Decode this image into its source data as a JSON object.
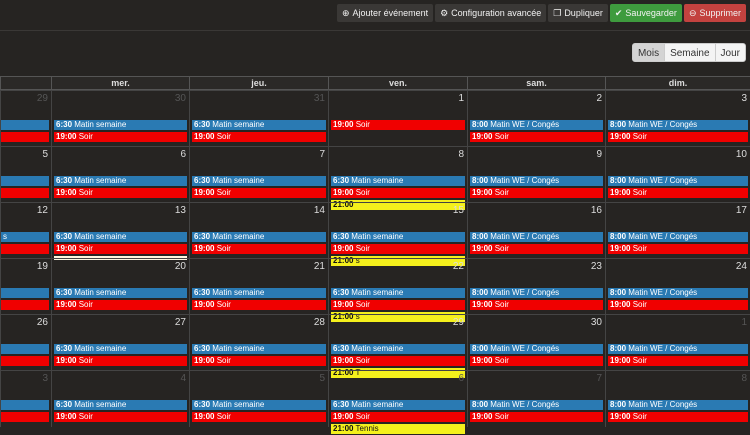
{
  "toolbar": {
    "add": "Ajouter événement",
    "config": "Configuration avancée",
    "duplicate": "Dupliquer",
    "save": "Sauvegarder",
    "delete": "Supprimer"
  },
  "views": [
    "Mois",
    "Semaine",
    "Jour"
  ],
  "headers": [
    "",
    "mer.",
    "jeu.",
    "ven.",
    "sam.",
    "dim."
  ],
  "weeks": [
    {
      "days": [
        {
          "num": "29",
          "dim": true,
          "events": [
            {
              "color": "blue",
              "time": "",
              "text": ""
            },
            {
              "color": "red",
              "time": "",
              "text": ""
            }
          ]
        },
        {
          "num": "30",
          "dim": true,
          "events": [
            {
              "color": "blue",
              "time": "6:30",
              "text": "Matin semaine"
            },
            {
              "color": "red",
              "time": "19:00",
              "text": "Soir"
            }
          ]
        },
        {
          "num": "31",
          "dim": true,
          "events": [
            {
              "color": "blue",
              "time": "6:30",
              "text": "Matin semaine"
            },
            {
              "color": "red",
              "time": "19:00",
              "text": "Soir"
            }
          ]
        },
        {
          "num": "1",
          "dim": false,
          "events": [
            {
              "color": "red",
              "time": "19:00",
              "text": "Soir"
            }
          ]
        },
        {
          "num": "2",
          "dim": false,
          "events": [
            {
              "color": "blue",
              "time": "8:00",
              "text": "Matin WE / Congés"
            },
            {
              "color": "red",
              "time": "19:00",
              "text": "Soir"
            }
          ]
        },
        {
          "num": "3",
          "dim": false,
          "events": [
            {
              "color": "blue",
              "time": "8:00",
              "text": "Matin WE / Congés"
            },
            {
              "color": "red",
              "time": "19:00",
              "text": "Soir"
            }
          ]
        }
      ]
    },
    {
      "days": [
        {
          "num": "5",
          "dim": false,
          "events": [
            {
              "color": "blue",
              "time": "",
              "text": ""
            },
            {
              "color": "red",
              "time": "",
              "text": ""
            }
          ]
        },
        {
          "num": "6",
          "dim": false,
          "events": [
            {
              "color": "blue",
              "time": "6:30",
              "text": "Matin semaine"
            },
            {
              "color": "red",
              "time": "19:00",
              "text": "Soir"
            }
          ]
        },
        {
          "num": "7",
          "dim": false,
          "events": [
            {
              "color": "blue",
              "time": "6:30",
              "text": "Matin semaine"
            },
            {
              "color": "red",
              "time": "19:00",
              "text": "Soir"
            }
          ]
        },
        {
          "num": "8",
          "dim": false,
          "events": [
            {
              "color": "blue",
              "time": "6:30",
              "text": "Matin semaine"
            },
            {
              "color": "red",
              "time": "19:00",
              "text": "Soir"
            },
            {
              "color": "yellow",
              "time": "21:00",
              "text": ""
            }
          ]
        },
        {
          "num": "9",
          "dim": false,
          "events": [
            {
              "color": "blue",
              "time": "8:00",
              "text": "Matin WE / Congés"
            },
            {
              "color": "red",
              "time": "19:00",
              "text": "Soir"
            }
          ]
        },
        {
          "num": "10",
          "dim": false,
          "events": [
            {
              "color": "blue",
              "time": "8:00",
              "text": "Matin WE / Congés"
            },
            {
              "color": "red",
              "time": "19:00",
              "text": "Soir"
            }
          ]
        }
      ]
    },
    {
      "days": [
        {
          "num": "12",
          "dim": false,
          "events": [
            {
              "color": "blue",
              "time": "",
              "text": "s"
            },
            {
              "color": "red",
              "time": "",
              "text": ""
            }
          ]
        },
        {
          "num": "13",
          "dim": false,
          "events": [
            {
              "color": "blue",
              "time": "6:30",
              "text": "Matin semaine"
            },
            {
              "color": "red",
              "time": "19:00",
              "text": "Soir"
            },
            {
              "color": "cream",
              "time": "",
              "text": ""
            }
          ]
        },
        {
          "num": "14",
          "dim": false,
          "events": [
            {
              "color": "blue",
              "time": "6:30",
              "text": "Matin semaine"
            },
            {
              "color": "red",
              "time": "19:00",
              "text": "Soir"
            }
          ]
        },
        {
          "num": "15",
          "dim": false,
          "events": [
            {
              "color": "blue",
              "time": "6:30",
              "text": "Matin semaine"
            },
            {
              "color": "red",
              "time": "19:00",
              "text": "Soir"
            },
            {
              "color": "yellow",
              "time": "21:00",
              "text": "s"
            }
          ]
        },
        {
          "num": "16",
          "dim": false,
          "events": [
            {
              "color": "blue",
              "time": "8:00",
              "text": "Matin WE / Congés"
            },
            {
              "color": "red",
              "time": "19:00",
              "text": "Soir"
            }
          ]
        },
        {
          "num": "17",
          "dim": false,
          "events": [
            {
              "color": "blue",
              "time": "8:00",
              "text": "Matin WE / Congés"
            },
            {
              "color": "red",
              "time": "19:00",
              "text": "Soir"
            }
          ]
        }
      ]
    },
    {
      "days": [
        {
          "num": "19",
          "dim": false,
          "events": [
            {
              "color": "blue",
              "time": "",
              "text": ""
            },
            {
              "color": "red",
              "time": "",
              "text": ""
            }
          ]
        },
        {
          "num": "20",
          "dim": false,
          "events": [
            {
              "color": "blue",
              "time": "6:30",
              "text": "Matin semaine"
            },
            {
              "color": "red",
              "time": "19:00",
              "text": "Soir"
            }
          ]
        },
        {
          "num": "21",
          "dim": false,
          "events": [
            {
              "color": "blue",
              "time": "6:30",
              "text": "Matin semaine"
            },
            {
              "color": "red",
              "time": "19:00",
              "text": "Soir"
            }
          ]
        },
        {
          "num": "22",
          "dim": false,
          "events": [
            {
              "color": "blue",
              "time": "6:30",
              "text": "Matin semaine"
            },
            {
              "color": "red",
              "time": "19:00",
              "text": "Soir"
            },
            {
              "color": "yellow",
              "time": "21:00",
              "text": "s"
            }
          ]
        },
        {
          "num": "23",
          "dim": false,
          "events": [
            {
              "color": "blue",
              "time": "8:00",
              "text": "Matin WE / Congés"
            },
            {
              "color": "red",
              "time": "19:00",
              "text": "Soir"
            }
          ]
        },
        {
          "num": "24",
          "dim": false,
          "events": [
            {
              "color": "blue",
              "time": "8:00",
              "text": "Matin WE / Congés"
            },
            {
              "color": "red",
              "time": "19:00",
              "text": "Soir"
            }
          ]
        }
      ]
    },
    {
      "days": [
        {
          "num": "26",
          "dim": false,
          "events": [
            {
              "color": "blue",
              "time": "",
              "text": ""
            },
            {
              "color": "red",
              "time": "",
              "text": ""
            }
          ]
        },
        {
          "num": "27",
          "dim": false,
          "events": [
            {
              "color": "blue",
              "time": "6:30",
              "text": "Matin semaine"
            },
            {
              "color": "red",
              "time": "19:00",
              "text": "Soir"
            }
          ]
        },
        {
          "num": "28",
          "dim": false,
          "events": [
            {
              "color": "blue",
              "time": "6:30",
              "text": "Matin semaine"
            },
            {
              "color": "red",
              "time": "19:00",
              "text": "Soir"
            }
          ]
        },
        {
          "num": "29",
          "dim": false,
          "events": [
            {
              "color": "blue",
              "time": "6:30",
              "text": "Matin semaine"
            },
            {
              "color": "red",
              "time": "19:00",
              "text": "Soir"
            },
            {
              "color": "yellow",
              "time": "21:00",
              "text": "T"
            }
          ]
        },
        {
          "num": "30",
          "dim": false,
          "events": [
            {
              "color": "blue",
              "time": "8:00",
              "text": "Matin WE / Congés"
            },
            {
              "color": "red",
              "time": "19:00",
              "text": "Soir"
            }
          ]
        },
        {
          "num": "1",
          "dim": true,
          "events": [
            {
              "color": "blue",
              "time": "8:00",
              "text": "Matin WE / Congés"
            },
            {
              "color": "red",
              "time": "19:00",
              "text": "Soir"
            }
          ]
        }
      ]
    },
    {
      "days": [
        {
          "num": "3",
          "dim": true,
          "events": [
            {
              "color": "blue",
              "time": "",
              "text": ""
            },
            {
              "color": "red",
              "time": "",
              "text": ""
            }
          ]
        },
        {
          "num": "4",
          "dim": true,
          "events": [
            {
              "color": "blue",
              "time": "6:30",
              "text": "Matin semaine"
            },
            {
              "color": "red",
              "time": "19:00",
              "text": "Soir"
            }
          ]
        },
        {
          "num": "5",
          "dim": true,
          "events": [
            {
              "color": "blue",
              "time": "6:30",
              "text": "Matin semaine"
            },
            {
              "color": "red",
              "time": "19:00",
              "text": "Soir"
            }
          ]
        },
        {
          "num": "6",
          "dim": true,
          "events": [
            {
              "color": "blue",
              "time": "6:30",
              "text": "Matin semaine"
            },
            {
              "color": "red",
              "time": "19:00",
              "text": "Soir"
            },
            {
              "color": "yellow",
              "time": "21:00",
              "text": "Tennis"
            }
          ]
        },
        {
          "num": "7",
          "dim": true,
          "events": [
            {
              "color": "blue",
              "time": "8:00",
              "text": "Matin WE / Congés"
            },
            {
              "color": "red",
              "time": "19:00",
              "text": "Soir"
            }
          ]
        },
        {
          "num": "8",
          "dim": true,
          "events": [
            {
              "color": "blue",
              "time": "8:00",
              "text": "Matin WE / Congés"
            },
            {
              "color": "red",
              "time": "19:00",
              "text": "Soir"
            }
          ]
        }
      ]
    }
  ]
}
